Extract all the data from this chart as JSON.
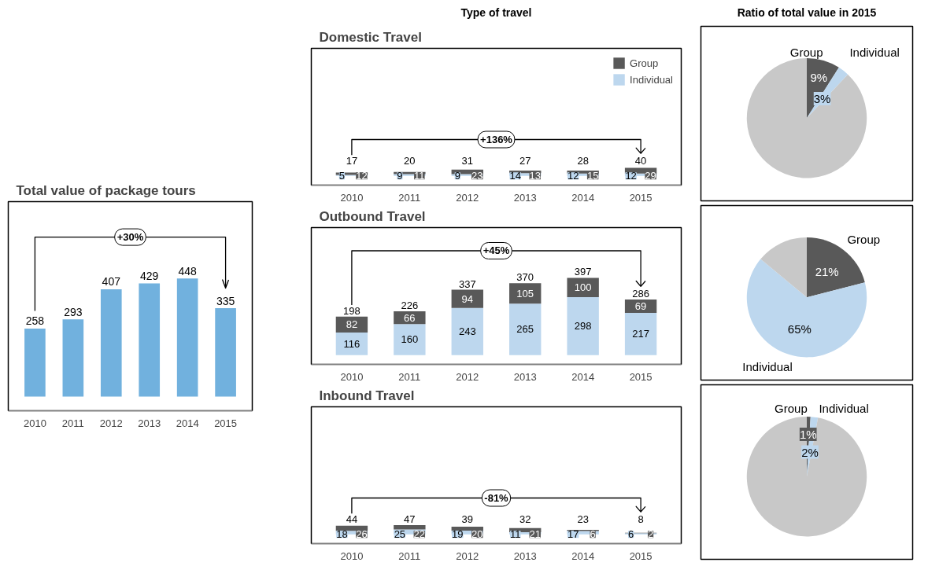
{
  "chart_data": [
    {
      "type": "bar",
      "title": "Total value of package tours",
      "categories": [
        "2010",
        "2011",
        "2012",
        "2013",
        "2014",
        "2015"
      ],
      "values": [
        258,
        293,
        407,
        429,
        448,
        335
      ],
      "color": "#71b1de",
      "data_labels": true,
      "annotations": [
        "+30%"
      ]
    },
    {
      "type": "other",
      "title": "Type of travel"
    },
    {
      "type": "bar",
      "stacked": true,
      "title": "Domestic Travel",
      "categories": [
        "2010",
        "2011",
        "2012",
        "2013",
        "2014",
        "2015"
      ],
      "series": [
        {
          "name": "Individual",
          "color": "#bdd7ee",
          "values": [
            5,
            9,
            9,
            14,
            12,
            12
          ]
        },
        {
          "name": "Group",
          "color": "#595959",
          "values": [
            12,
            11,
            23,
            13,
            15,
            29
          ]
        }
      ],
      "data_labels": true,
      "totals": [
        "17",
        "20",
        "31",
        "27",
        "28",
        "40"
      ],
      "legend": "top right",
      "annotations": [
        "+136%"
      ]
    },
    {
      "type": "bar",
      "stacked": true,
      "title": "Outbound Travel",
      "categories": [
        "2010",
        "2011",
        "2012",
        "2013",
        "2014",
        "2015"
      ],
      "series": [
        {
          "color": "#bdd7ee",
          "values": [
            116,
            160,
            243,
            265,
            298,
            217
          ]
        },
        {
          "color": "#595959",
          "values": [
            82,
            66,
            94,
            105,
            100,
            69
          ]
        }
      ],
      "data_labels": true,
      "totals": [
        "198",
        "226",
        "337",
        "370",
        "397",
        "286"
      ],
      "annotations": [
        "+45%"
      ]
    },
    {
      "type": "bar",
      "stacked": true,
      "title": "Inbound Travel",
      "categories": [
        "2010",
        "2011",
        "2012",
        "2013",
        "2014",
        "2015"
      ],
      "series": [
        {
          "color": "#bdd7ee",
          "values": [
            18,
            25,
            19,
            11,
            17,
            6
          ]
        },
        {
          "color": "#595959",
          "values": [
            26,
            22,
            20,
            21,
            6,
            2
          ]
        }
      ],
      "data_labels": true,
      "totals": [
        "44",
        "47",
        "39",
        "32",
        "23",
        "8"
      ],
      "annotations": [
        "-81%"
      ]
    },
    {
      "type": "other",
      "title": "Ratio of total value in 2015"
    },
    {
      "type": "pie",
      "categories": [
        "Group",
        "Individual",
        null
      ],
      "values": [
        9,
        3,
        88
      ],
      "colors": [
        "#595959",
        "#bdd7ee",
        "#c8c8c8"
      ],
      "value_labels": [
        "9%",
        "3%",
        null
      ]
    },
    {
      "type": "pie",
      "categories": [
        "Group",
        "Individual",
        null
      ],
      "values": [
        21,
        65,
        14
      ],
      "colors": [
        "#595959",
        "#bdd7ee",
        "#c8c8c8"
      ],
      "value_labels": [
        "21%",
        "65%",
        null
      ]
    },
    {
      "type": "pie",
      "categories": [
        "Group",
        "Individual",
        null
      ],
      "values": [
        1,
        2,
        97
      ],
      "colors": [
        "#595959",
        "#bdd7ee",
        "#c8c8c8"
      ],
      "value_labels": [
        "1%",
        "2%",
        null
      ]
    }
  ]
}
